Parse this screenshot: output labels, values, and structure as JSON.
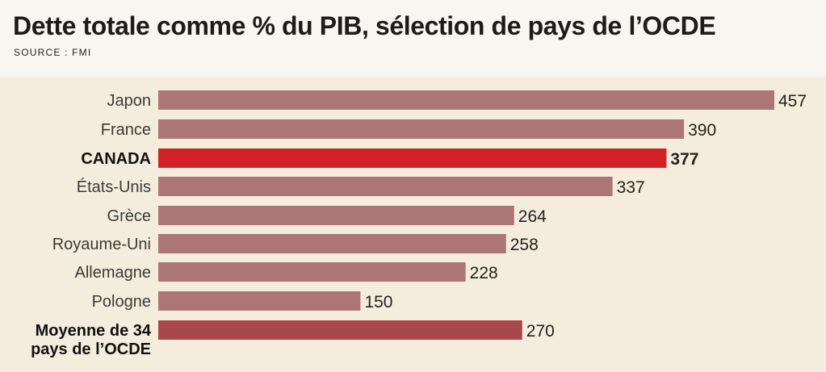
{
  "header": {
    "title": "Dette totale comme % du PIB, sélection de pays de l’OCDE",
    "source": "SOURCE : FMI"
  },
  "colors": {
    "bar_default": "#ad7676",
    "bar_highlight": "#d42127",
    "bar_average": "#a8484b",
    "value_highlight": "#c0242a"
  },
  "chart_data": {
    "type": "bar",
    "orientation": "horizontal",
    "title": "Dette totale comme % du PIB, sélection de pays de l’OCDE",
    "source": "SOURCE : FMI",
    "xlim": [
      0,
      457
    ],
    "grid": false,
    "categories": [
      "Japon",
      "France",
      "CANADA",
      "États-Unis",
      "Grèce",
      "Royaume-Uni",
      "Allemagne",
      "Pologne",
      "Moyenne de 34 pays de l’OCDE"
    ],
    "category_lines": [
      [
        "Japon"
      ],
      [
        "France"
      ],
      [
        "CANADA"
      ],
      [
        "États-Unis"
      ],
      [
        "Grèce"
      ],
      [
        "Royaume-Uni"
      ],
      [
        "Allemagne"
      ],
      [
        "Pologne"
      ],
      [
        "Moyenne de 34",
        "pays de l’OCDE"
      ]
    ],
    "values": [
      457,
      390,
      377,
      337,
      264,
      258,
      228,
      150,
      270
    ],
    "styles": [
      "default",
      "default",
      "highlight",
      "default",
      "default",
      "default",
      "default",
      "default",
      "average"
    ]
  }
}
